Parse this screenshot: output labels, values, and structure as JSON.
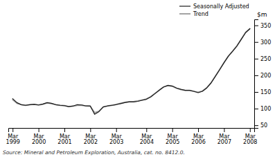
{
  "chart_data": {
    "type": "line",
    "categories": [
      "Mar\n1999",
      null,
      null,
      null,
      null,
      null,
      "Mar\n2000",
      null,
      null,
      null,
      null,
      null,
      "Mar\n2001",
      null,
      null,
      null,
      null,
      null,
      "Mar\n2002",
      null,
      null,
      null,
      null,
      null,
      "Mar\n2003",
      null,
      null,
      null,
      null,
      null,
      null,
      "Mar\n2004",
      null,
      null,
      null,
      null,
      null,
      "Mar\n2005",
      null,
      null,
      null,
      null,
      null,
      "Mar\n2006",
      null,
      null,
      null,
      null,
      null,
      "Mar\n2007",
      null,
      null,
      null,
      null,
      null,
      "Mar\n2008"
    ],
    "series": [
      {
        "name": "Seasonally Adjusted",
        "color": "#1a1a1a",
        "values": [
          130,
          118,
          112,
          110,
          112,
          113,
          111,
          114,
          118,
          116,
          112,
          110,
          109,
          106,
          108,
          112,
          111,
          108,
          108,
          83,
          91,
          105,
          108,
          110,
          112,
          115,
          118,
          120,
          120,
          122,
          125,
          128,
          135,
          145,
          155,
          165,
          170,
          168,
          162,
          158,
          155,
          155,
          152,
          148,
          152,
          162,
          177,
          197,
          217,
          238,
          257,
          272,
          288,
          308,
          328,
          340
        ]
      },
      {
        "name": "Trend",
        "color": "#999999",
        "values": [
          127,
          116,
          112,
          110,
          112,
          113,
          111,
          113,
          117,
          115,
          112,
          110,
          109,
          106,
          107,
          110,
          110,
          108,
          107,
          88,
          92,
          105,
          108,
          110,
          113,
          116,
          119,
          121,
          121,
          123,
          126,
          129,
          136,
          146,
          156,
          165,
          169,
          167,
          161,
          157,
          155,
          155,
          152,
          149,
          153,
          163,
          178,
          198,
          218,
          238,
          258,
          273,
          289,
          309,
          329,
          340
        ]
      }
    ],
    "ylabel": "$m",
    "annotations": [
      "Source: Mineral and Petroleum Exploration, Australia, cat. no. 8412.0."
    ],
    "ylim": [
      42,
      368
    ],
    "yticks": [
      50,
      100,
      150,
      200,
      250,
      300,
      350
    ],
    "legend": "upper right",
    "grid": false
  }
}
